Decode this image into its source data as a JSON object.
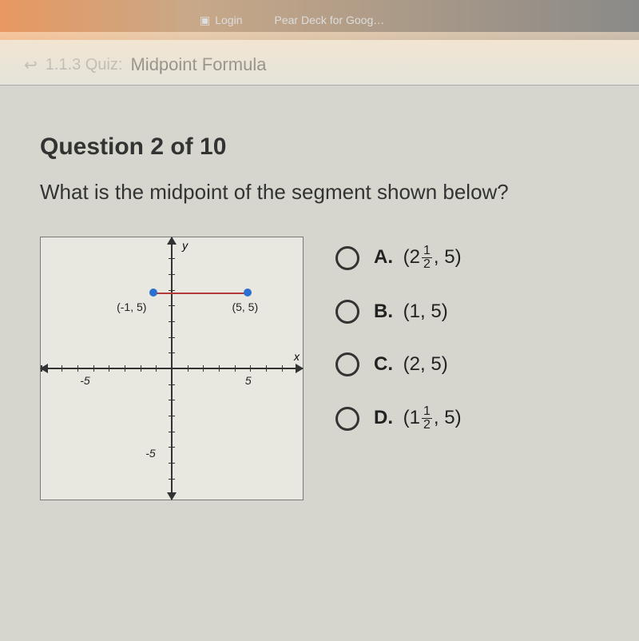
{
  "browser": {
    "tab1": "Login",
    "tab2": "Pear Deck for Goog…"
  },
  "header": {
    "prefix": "1.1.3 Quiz:",
    "title": "Midpoint Formula"
  },
  "question": {
    "number": "Question 2 of 10",
    "text": "What is the midpoint of the segment shown below?"
  },
  "graph": {
    "point1_label": "(-1, 5)",
    "point2_label": "(5, 5)",
    "y_letter": "y",
    "x_letter": "x",
    "neg5": "-5",
    "pos5": "5",
    "neg5y": "-5",
    "point1": {
      "x_percent": 43,
      "y_percent": 21
    },
    "point2": {
      "x_percent": 79,
      "y_percent": 21
    },
    "seg": {
      "left_percent": 43,
      "width_percent": 36,
      "y_percent": 21
    },
    "colors": {
      "point": "#2b6fd1",
      "segment": "#b23a3a",
      "axis": "#333333",
      "bg": "#e8e8e0"
    }
  },
  "choices": {
    "A": {
      "letter": "A.",
      "text_pre": "(2",
      "frac_n": "1",
      "frac_d": "2",
      "text_post": ", 5)"
    },
    "B": {
      "letter": "B.",
      "text": "(1, 5)"
    },
    "C": {
      "letter": "C.",
      "text": "(2, 5)"
    },
    "D": {
      "letter": "D.",
      "text_pre": "(1",
      "frac_n": "1",
      "frac_d": "2",
      "text_post": ", 5)"
    }
  }
}
